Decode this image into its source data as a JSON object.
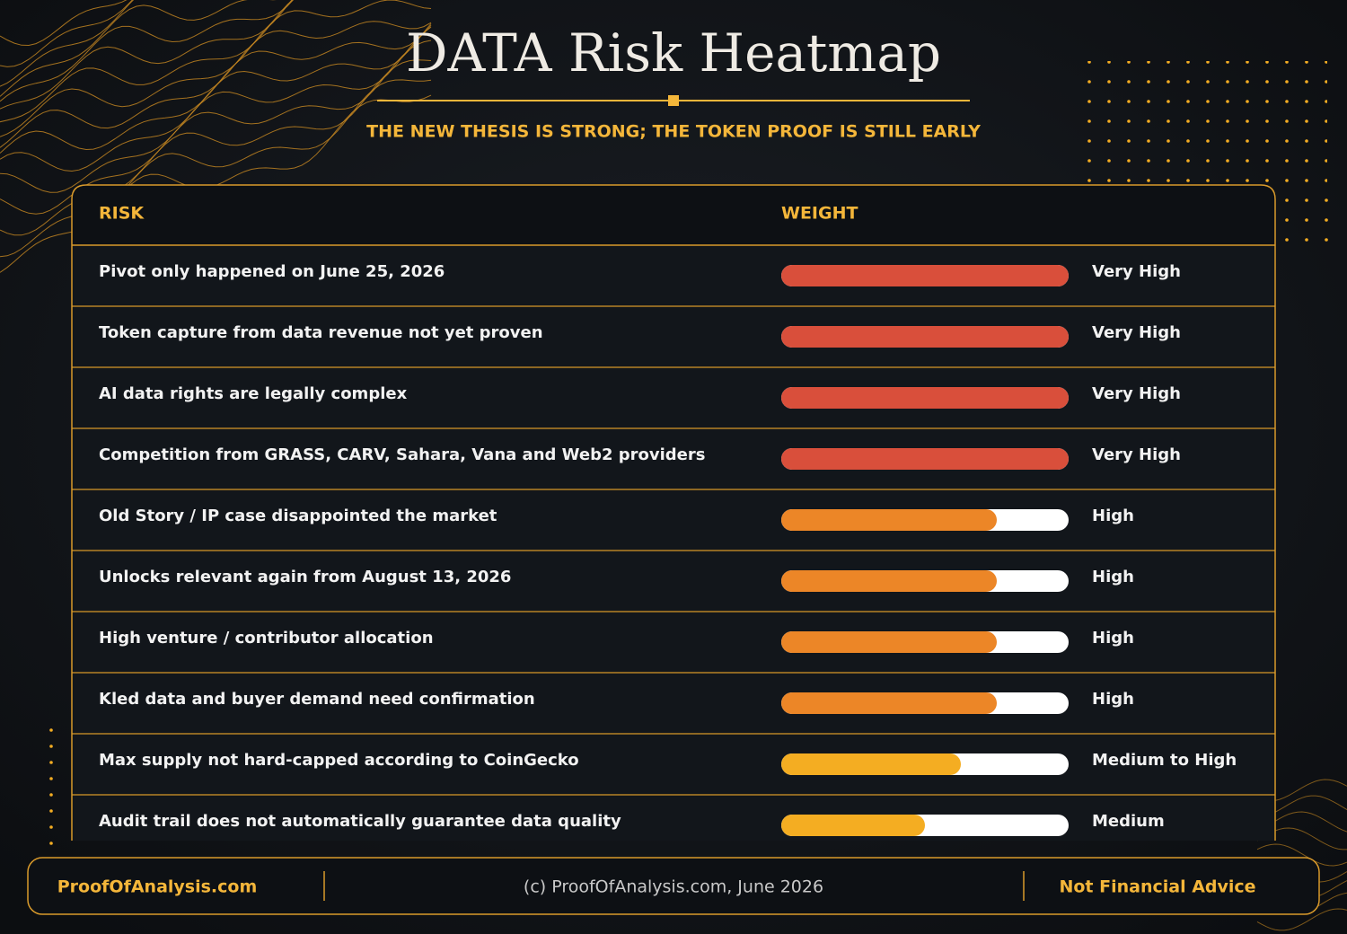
{
  "header": {
    "title": "DATA Risk Heatmap",
    "subtitle": "THE NEW THESIS IS STRONG; THE TOKEN PROOF IS STILL EARLY"
  },
  "table": {
    "columns": [
      "RISK",
      "WEIGHT"
    ],
    "xlim": [
      0,
      100
    ],
    "rows": [
      {
        "risk": "Pivot only happened on June 25, 2026",
        "level": "Very High",
        "weight": 100,
        "color": "#d94f3b"
      },
      {
        "risk": "Token capture from data revenue not yet proven",
        "level": "Very High",
        "weight": 100,
        "color": "#d94f3b"
      },
      {
        "risk": "AI data rights are legally complex",
        "level": "Very High",
        "weight": 100,
        "color": "#d94f3b"
      },
      {
        "risk": "Competition from GRASS, CARV, Sahara, Vana and Web2 providers",
        "level": "Very High",
        "weight": 100,
        "color": "#d94f3b"
      },
      {
        "risk": "Old Story / IP case disappointed the market",
        "level": "High",
        "weight": 75,
        "color": "#ec8627"
      },
      {
        "risk": "Unlocks relevant again from August 13, 2026",
        "level": "High",
        "weight": 75,
        "color": "#ec8627"
      },
      {
        "risk": "High venture / contributor allocation",
        "level": "High",
        "weight": 75,
        "color": "#ec8627"
      },
      {
        "risk": "Kled data and buyer demand need confirmation",
        "level": "High",
        "weight": 75,
        "color": "#ec8627"
      },
      {
        "risk": "Max supply not hard-capped according to CoinGecko",
        "level": "Medium to High",
        "weight": 62.5,
        "color": "#f4ad22"
      },
      {
        "risk": "Audit trail does not automatically guarantee data quality",
        "level": "Medium",
        "weight": 50,
        "color": "#f4ad22"
      }
    ]
  },
  "footer": {
    "left": "ProofOfAnalysis.com",
    "center": "(c) ProofOfAnalysis.com, June 2026",
    "right": "Not Financial Advice"
  }
}
